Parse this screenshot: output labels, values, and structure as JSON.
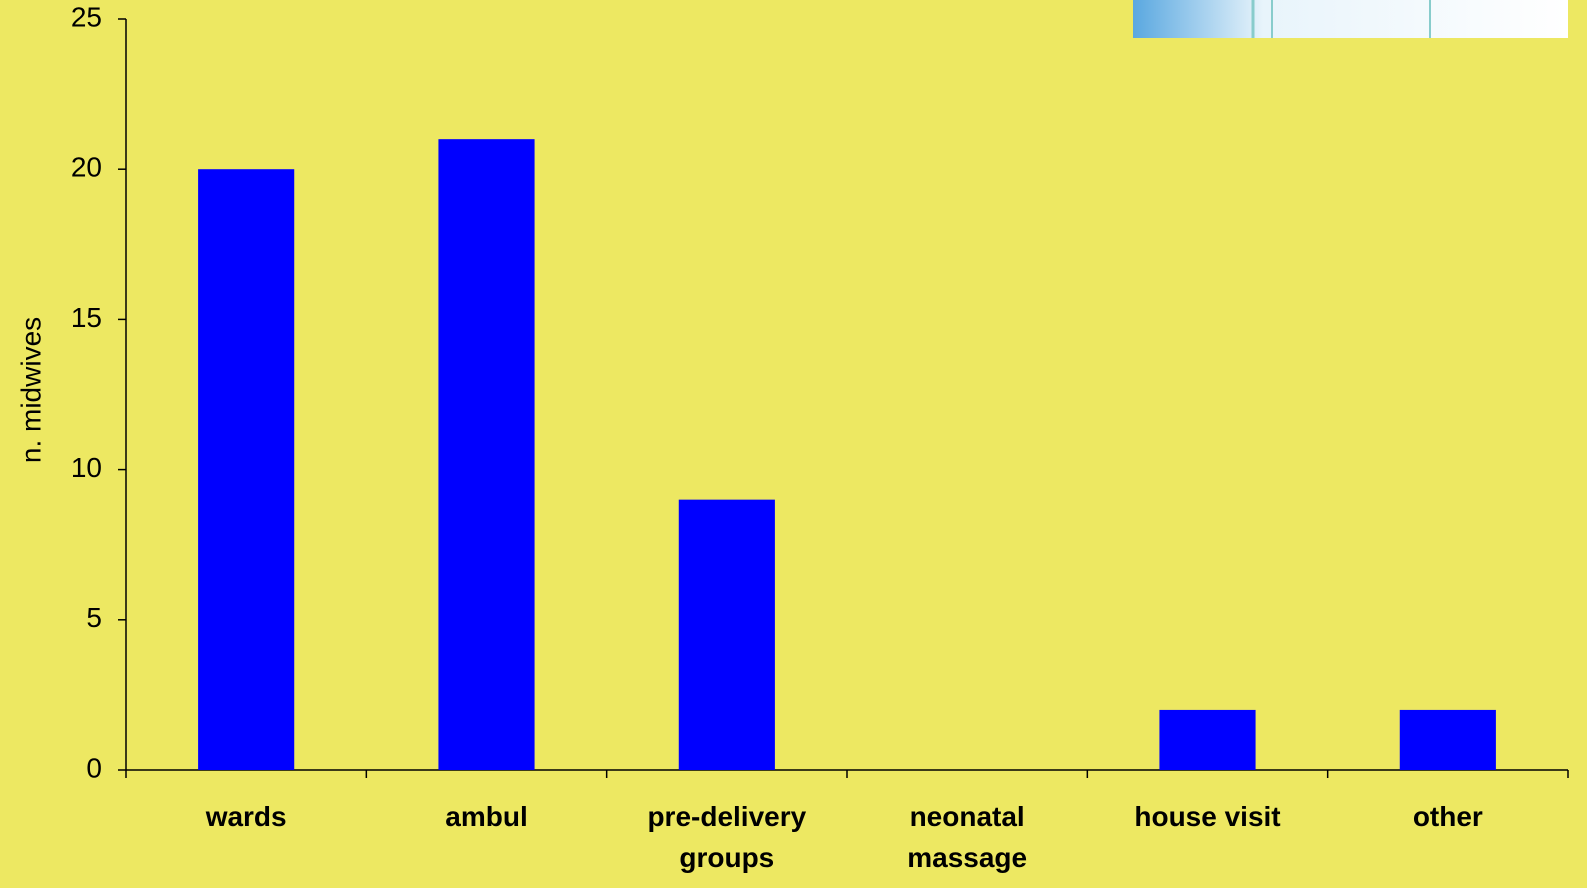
{
  "chart_data": {
    "type": "bar",
    "y_label": "n. midwives",
    "categories": [
      "wards",
      "ambul",
      "pre-delivery groups",
      "neonatal massage",
      "house visit",
      "other"
    ],
    "values": [
      20,
      21,
      9,
      0,
      2,
      2
    ],
    "color": "#0000ff",
    "ylim": [
      0,
      25
    ],
    "yticks": [
      0,
      5,
      10,
      15,
      20,
      25
    ],
    "grid": false
  }
}
